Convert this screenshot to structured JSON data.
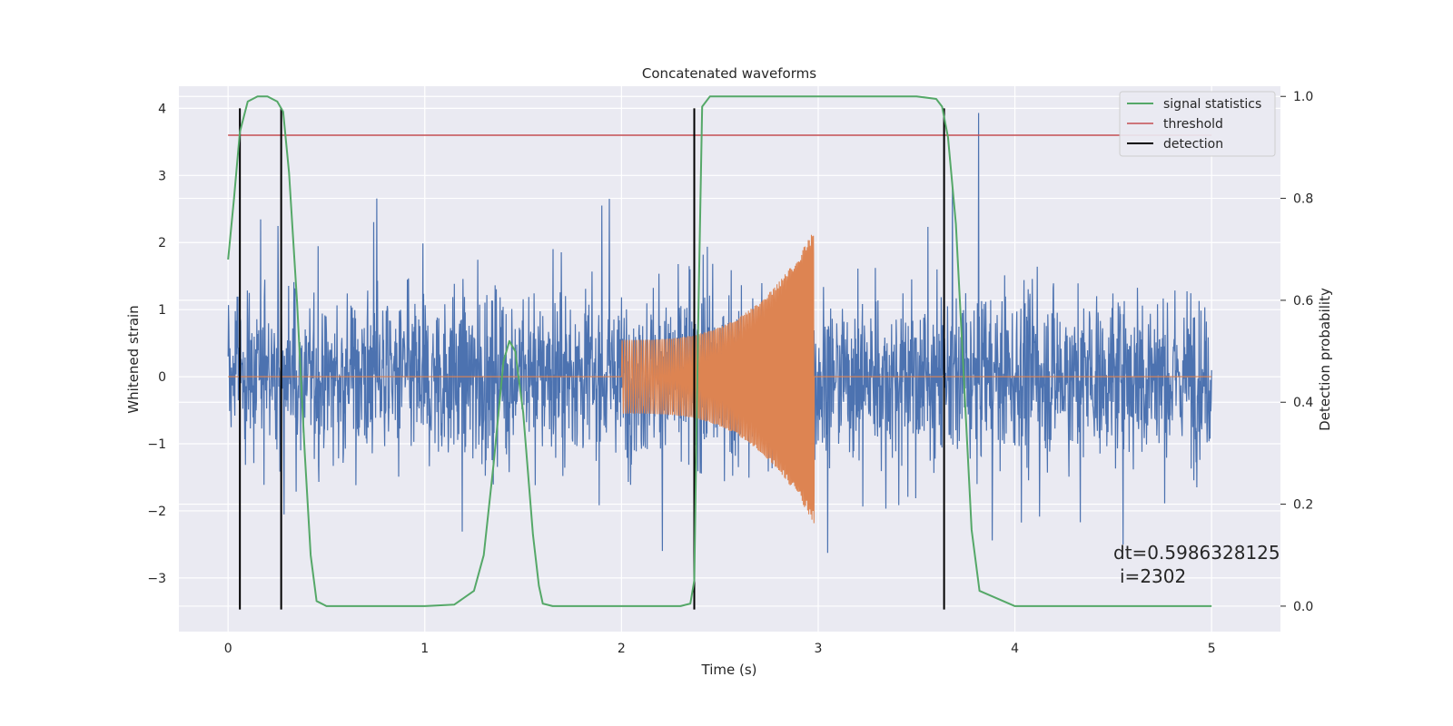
{
  "chart_data": {
    "type": "line",
    "title": "Concatenated waveforms",
    "xlabel": "Time (s)",
    "ylabel": "Whitened strain",
    "ylabel_right": "Detection probability",
    "xlim": [
      -0.25,
      5.35
    ],
    "ylim": [
      -3.8,
      4.33
    ],
    "ylim_right": [
      -0.05,
      1.02
    ],
    "x_ticks": [
      0,
      1,
      2,
      3,
      4,
      5
    ],
    "y_ticks": [
      -3,
      -2,
      -1,
      0,
      1,
      2,
      3,
      4
    ],
    "y_ticks_right": [
      0.0,
      0.2,
      0.4,
      0.6,
      0.8,
      1.0
    ],
    "x_tick_labels": [
      "0",
      "1",
      "2",
      "3",
      "4",
      "5"
    ],
    "y_tick_labels": [
      "−3",
      "−2",
      "−1",
      "0",
      "1",
      "2",
      "3",
      "4"
    ],
    "y_tick_labels_right": [
      "0.0",
      "0.2",
      "0.4",
      "0.6",
      "0.8",
      "1.0"
    ],
    "grid": true,
    "legend_position": "top-right",
    "legend": [
      "signal statistics",
      "threshold",
      "detection"
    ],
    "colors": {
      "strain": "#4c72b0",
      "injection": "#dd8452",
      "signal_statistics": "#55a868",
      "threshold": "#c44e52",
      "detection": "#000000",
      "background": "#eaeaf2",
      "grid": "#ffffff"
    },
    "series": [
      {
        "name": "whitened strain noise",
        "x_range": [
          0,
          5
        ],
        "amplitude_envelope": 3.5
      },
      {
        "name": "injected chirp",
        "x_range": [
          2.0,
          2.98
        ],
        "amplitude_start": 0.55,
        "amplitude_end": 2.2,
        "baseline": 0
      },
      {
        "name": "signal statistics",
        "x": [
          0.0,
          0.03,
          0.06,
          0.1,
          0.15,
          0.2,
          0.25,
          0.28,
          0.31,
          0.35,
          0.39,
          0.42,
          0.45,
          0.5,
          0.8,
          1.0,
          1.15,
          1.25,
          1.3,
          1.35,
          1.4,
          1.43,
          1.46,
          1.5,
          1.55,
          1.58,
          1.6,
          1.65,
          2.0,
          2.3,
          2.35,
          2.37,
          2.39,
          2.41,
          2.45,
          3.0,
          3.5,
          3.6,
          3.63,
          3.66,
          3.7,
          3.74,
          3.78,
          3.82,
          4.0,
          5.0
        ],
        "y": [
          0.68,
          0.8,
          0.93,
          0.99,
          1.0,
          1.0,
          0.99,
          0.97,
          0.85,
          0.6,
          0.3,
          0.1,
          0.01,
          0.0,
          0.0,
          0.0,
          0.003,
          0.03,
          0.1,
          0.28,
          0.48,
          0.52,
          0.5,
          0.38,
          0.14,
          0.04,
          0.005,
          0.0,
          0.0,
          0.0,
          0.005,
          0.05,
          0.55,
          0.98,
          1.0,
          1.0,
          1.0,
          0.995,
          0.98,
          0.92,
          0.75,
          0.45,
          0.15,
          0.03,
          0.0,
          0.0
        ]
      },
      {
        "name": "threshold",
        "x": [
          0,
          5
        ],
        "y": [
          3.6,
          3.6
        ]
      },
      {
        "name": "detection",
        "x": [
          0.06,
          0.27,
          2.37,
          3.64
        ],
        "y_range": [
          -3.47,
          4.0
        ]
      }
    ],
    "annotation": {
      "line1": "dt=0.5986328125",
      "line2": "i=2302"
    }
  }
}
